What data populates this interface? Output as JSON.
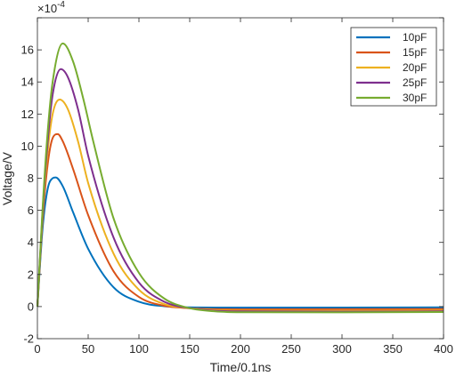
{
  "chart_data": {
    "type": "line",
    "title": "",
    "xlabel": "Time/0.1ns",
    "ylabel": "Voltage/V",
    "y_exponent_label": "×10",
    "y_exponent_power": "-4",
    "y_exponent": -4,
    "xlim": [
      0,
      400
    ],
    "ylim": [
      -2,
      18
    ],
    "xticks": [
      0,
      50,
      100,
      150,
      200,
      250,
      300,
      350,
      400
    ],
    "yticks": [
      -2,
      0,
      2,
      4,
      6,
      8,
      10,
      12,
      14,
      16,
      18
    ],
    "xtick_labels": [
      "0",
      "50",
      "100",
      "150",
      "200",
      "250",
      "300",
      "350",
      "400"
    ],
    "ytick_labels": [
      "-2",
      "0",
      "2",
      "4",
      "6",
      "8",
      "10",
      "12",
      "14",
      "16",
      ""
    ],
    "grid": false,
    "legend_position": "top-right",
    "series": [
      {
        "name": "10pF",
        "color": "#0072BD",
        "x": [
          0,
          5,
          10,
          15,
          18,
          25,
          35,
          50,
          75,
          100,
          125,
          150,
          175,
          200,
          300,
          400
        ],
        "y": [
          0,
          4.8,
          7.3,
          8.0,
          8.05,
          7.5,
          5.9,
          3.6,
          1.2,
          0.3,
          0.02,
          -0.05,
          -0.06,
          -0.06,
          -0.06,
          -0.05
        ]
      },
      {
        "name": "15pF",
        "color": "#D95319",
        "x": [
          0,
          5,
          10,
          15,
          20,
          25,
          35,
          50,
          75,
          100,
          125,
          150,
          175,
          200,
          300,
          400
        ],
        "y": [
          0,
          5.3,
          8.8,
          10.5,
          10.75,
          10.3,
          8.6,
          5.7,
          2.2,
          0.6,
          0.05,
          -0.1,
          -0.16,
          -0.17,
          -0.16,
          -0.15
        ]
      },
      {
        "name": "20pF",
        "color": "#EDB120",
        "x": [
          0,
          5,
          10,
          15,
          22,
          30,
          40,
          50,
          75,
          100,
          125,
          150,
          175,
          200,
          300,
          400
        ],
        "y": [
          0,
          5.6,
          9.6,
          12.0,
          12.9,
          12.3,
          10.3,
          7.7,
          3.3,
          1.05,
          0.15,
          -0.1,
          -0.22,
          -0.25,
          -0.26,
          -0.24
        ]
      },
      {
        "name": "25pF",
        "color": "#7E2F8E",
        "x": [
          0,
          5,
          10,
          15,
          23,
          30,
          40,
          50,
          75,
          100,
          125,
          150,
          175,
          200,
          300,
          400
        ],
        "y": [
          0,
          5.8,
          10.2,
          13.2,
          14.8,
          14.3,
          12.3,
          9.4,
          4.3,
          1.5,
          0.3,
          -0.1,
          -0.26,
          -0.3,
          -0.32,
          -0.3
        ]
      },
      {
        "name": "30pF",
        "color": "#77AC30",
        "x": [
          0,
          5,
          10,
          15,
          25,
          35,
          45,
          55,
          75,
          100,
          125,
          150,
          175,
          200,
          300,
          400
        ],
        "y": [
          0,
          6.0,
          10.8,
          14.0,
          16.4,
          15.3,
          13.0,
          10.3,
          5.5,
          2.1,
          0.5,
          -0.1,
          -0.3,
          -0.35,
          -0.36,
          -0.34
        ]
      }
    ]
  }
}
